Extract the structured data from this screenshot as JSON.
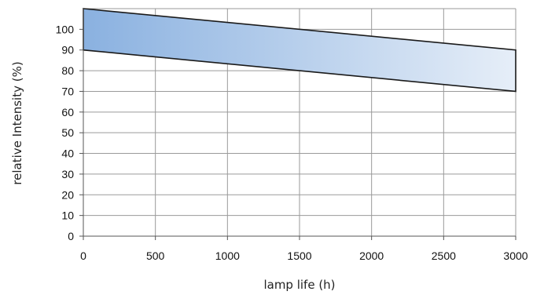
{
  "chart_data": {
    "type": "area",
    "title": "",
    "xlabel": "lamp life (h)",
    "ylabel": "relative Intensity (%)",
    "xlim": [
      0,
      3000
    ],
    "ylim": [
      0,
      110
    ],
    "grid": true,
    "x_ticks": [
      0,
      500,
      1000,
      1500,
      2000,
      2500,
      3000
    ],
    "y_ticks": [
      0,
      10,
      20,
      30,
      40,
      50,
      60,
      70,
      80,
      90,
      100
    ],
    "band": {
      "x": [
        0,
        3000
      ],
      "upper": [
        110,
        90
      ],
      "lower": [
        90,
        70
      ]
    },
    "colors": {
      "fill_start": "#8ab1e0",
      "fill_end": "#e6eef8",
      "band_line": "#1a1a1a",
      "grid": "#9a9a9a",
      "axis": "#555555"
    }
  }
}
